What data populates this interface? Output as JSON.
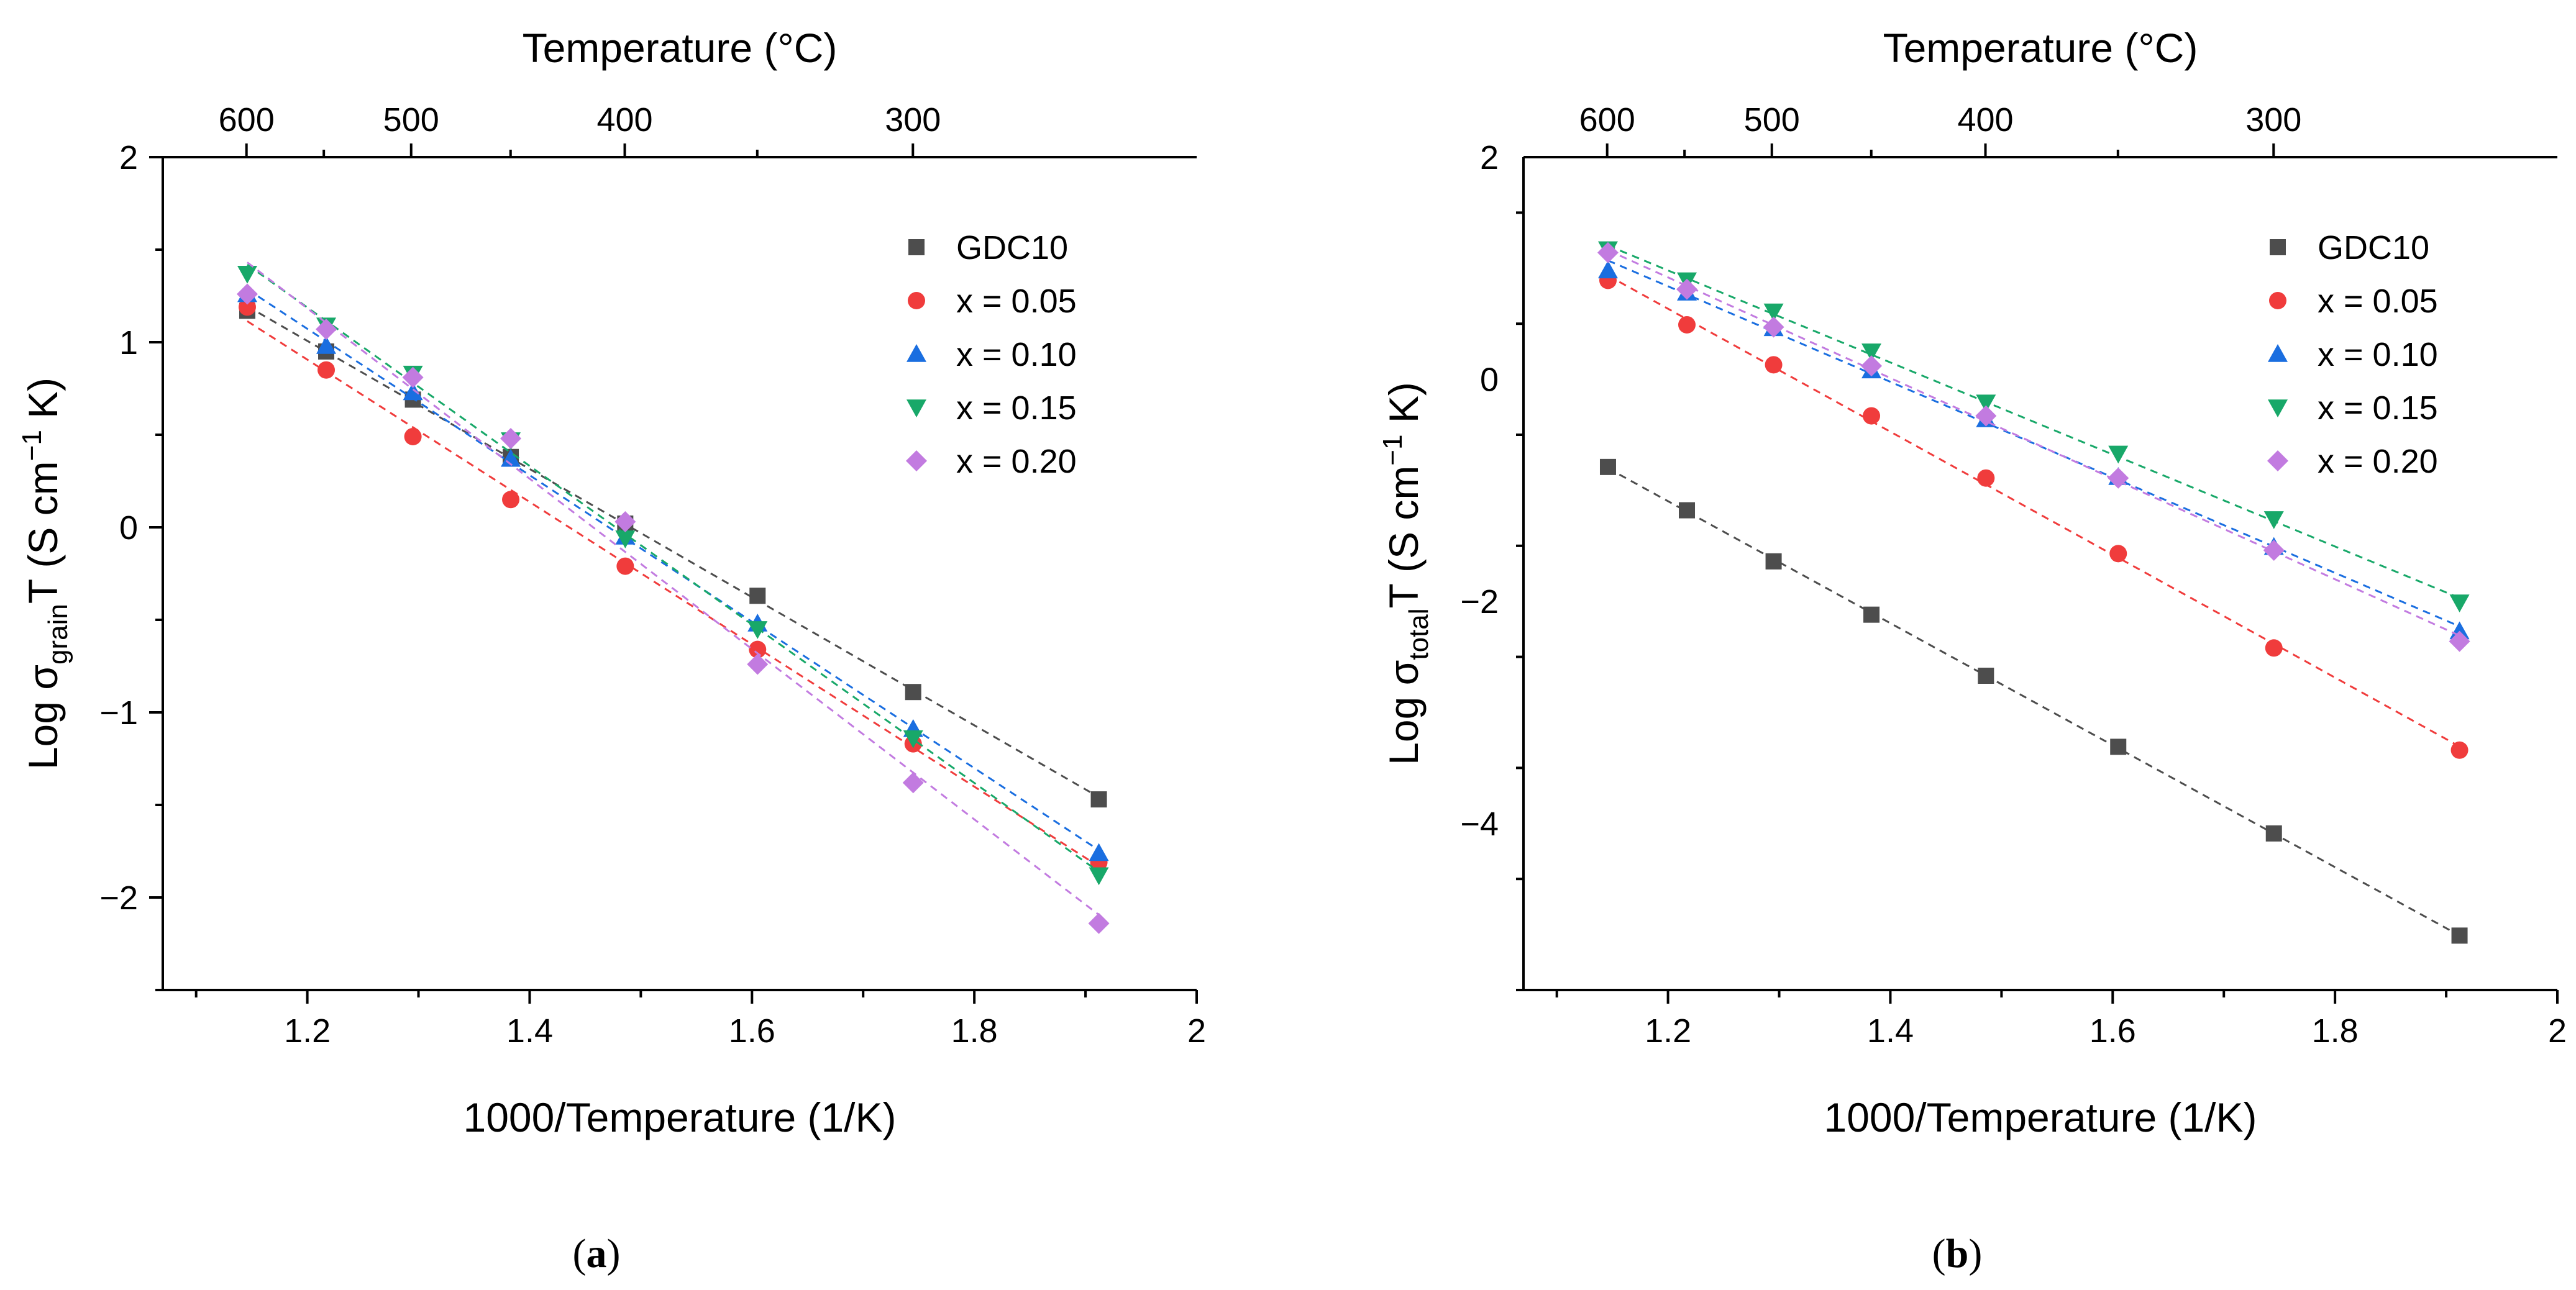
{
  "chart_data": [
    {
      "type": "scatter",
      "panel_label": {
        "open": "(",
        "letter": "a",
        "close": ")"
      },
      "xlabel": "1000/Temperature (1/K)",
      "ylabel": {
        "prefix": "Log σ",
        "sub": "grain",
        "mid": "T (S cm",
        "sup": "−1",
        "suffix": " K)"
      },
      "top_xlabel": "Temperature (°C)",
      "xlim": [
        1.07,
        2.0
      ],
      "ylim": [
        -2.5,
        2.0
      ],
      "xticks": [
        1.2,
        1.4,
        1.6,
        1.8,
        2.0
      ],
      "xtick_labels": [
        "1.2",
        "1.4",
        "1.6",
        "1.8",
        "2"
      ],
      "yticks": [
        -2,
        -1,
        0,
        1,
        2
      ],
      "ytick_labels": [
        "−2",
        "−1",
        "0",
        "1",
        "2"
      ],
      "top_ticks_celsius": [
        600,
        500,
        400,
        300
      ],
      "top_tick_labels": [
        "600",
        "500",
        "400",
        "300"
      ],
      "legend_position": "top-right",
      "x": [
        1.146,
        1.217,
        1.295,
        1.383,
        1.486,
        1.605,
        1.745,
        1.912
      ],
      "series": [
        {
          "name": "GDC10",
          "color": "#4d4d4d",
          "marker": "square",
          "values": [
            1.17,
            0.95,
            0.69,
            0.38,
            0.02,
            -0.37,
            -0.89,
            -1.47
          ]
        },
        {
          "name": "x = 0.05",
          "color": "#f03c3c",
          "marker": "circle",
          "values": [
            1.19,
            0.85,
            0.49,
            0.15,
            -0.21,
            -0.66,
            -1.17,
            -1.81
          ]
        },
        {
          "name": "x = 0.10",
          "color": "#1a6ee0",
          "marker": "triangle-up",
          "values": [
            1.26,
            0.98,
            0.73,
            0.37,
            -0.05,
            -0.52,
            -1.09,
            -1.76
          ]
        },
        {
          "name": "x = 0.15",
          "color": "#18a869",
          "marker": "triangle-down",
          "values": [
            1.37,
            1.09,
            0.83,
            0.47,
            -0.06,
            -0.55,
            -1.14,
            -1.88
          ]
        },
        {
          "name": "x = 0.20",
          "color": "#c27be0",
          "marker": "diamond",
          "values": [
            1.26,
            1.07,
            0.81,
            0.48,
            0.03,
            -0.74,
            -1.38,
            -2.14
          ]
        }
      ]
    },
    {
      "type": "scatter",
      "panel_label": {
        "open": "(",
        "letter": "b",
        "close": ")"
      },
      "xlabel": "1000/Temperature (1/K)",
      "ylabel": {
        "prefix": "Log σ",
        "sub": "total",
        "mid": "T (S cm",
        "sup": "−1",
        "suffix": " K)"
      },
      "top_xlabel": "Temperature (°C)",
      "xlim": [
        1.07,
        2.0
      ],
      "ylim": [
        -5.5,
        2.0
      ],
      "xticks": [
        1.2,
        1.4,
        1.6,
        1.8,
        2.0
      ],
      "xtick_labels": [
        "1.2",
        "1.4",
        "1.6",
        "1.8",
        "2"
      ],
      "yticks": [
        -4,
        -2,
        0,
        2
      ],
      "ytick_labels": [
        "−4",
        "−2",
        "0",
        "2"
      ],
      "top_ticks_celsius": [
        600,
        500,
        400,
        300
      ],
      "top_tick_labels": [
        "600",
        "500",
        "400",
        "300"
      ],
      "legend_position": "top-right",
      "x": [
        1.146,
        1.217,
        1.295,
        1.383,
        1.486,
        1.605,
        1.745,
        1.912
      ],
      "series": [
        {
          "name": "GDC10",
          "color": "#4d4d4d",
          "marker": "square",
          "values": [
            -0.79,
            -1.18,
            -1.64,
            -2.12,
            -2.67,
            -3.31,
            -4.09,
            -5.01
          ]
        },
        {
          "name": "x = 0.05",
          "color": "#f03c3c",
          "marker": "circle",
          "values": [
            0.89,
            0.49,
            0.13,
            -0.33,
            -0.89,
            -1.57,
            -2.42,
            -3.34
          ]
        },
        {
          "name": "x = 0.10",
          "color": "#1a6ee0",
          "marker": "triangle-up",
          "values": [
            0.98,
            0.78,
            0.46,
            0.08,
            -0.36,
            -0.88,
            -1.51,
            -2.27
          ]
        },
        {
          "name": "x = 0.15",
          "color": "#18a869",
          "marker": "triangle-down",
          "values": [
            1.17,
            0.89,
            0.61,
            0.25,
            -0.21,
            -0.67,
            -1.26,
            -2.01
          ]
        },
        {
          "name": "x = 0.20",
          "color": "#c27be0",
          "marker": "diamond",
          "values": [
            1.14,
            0.81,
            0.47,
            0.12,
            -0.33,
            -0.89,
            -1.54,
            -2.36
          ]
        }
      ]
    }
  ]
}
